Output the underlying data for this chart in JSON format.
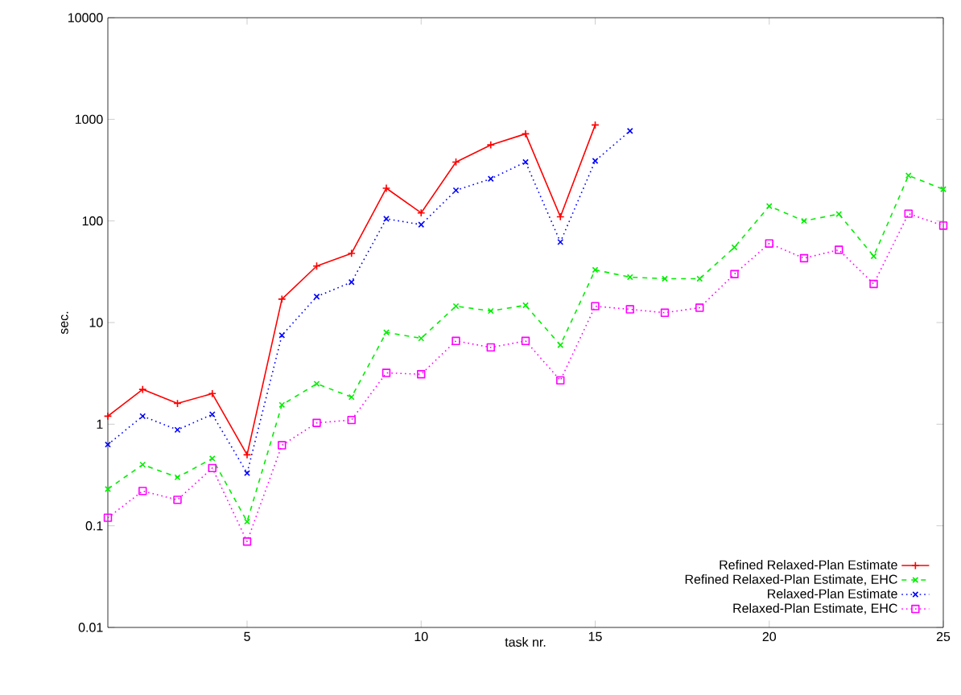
{
  "chart_data": {
    "type": "line",
    "xlabel": "task nr.",
    "ylabel": "sec.",
    "log": "y",
    "xlim": [
      1,
      25
    ],
    "ylim": [
      0.01,
      10000
    ],
    "xticks": [
      5,
      10,
      15,
      20,
      25
    ],
    "yticks": [
      0.01,
      0.1,
      1,
      10,
      100,
      1000,
      10000
    ],
    "legend": "bottom right",
    "grid": false,
    "series": [
      {
        "name": "Refined Relaxed-Plan Estimate",
        "color": "#ff0000",
        "marker": "plus",
        "line_style": "solid",
        "x": [
          1,
          2,
          3,
          4,
          5,
          6,
          7,
          8,
          9,
          10,
          11,
          12,
          13,
          14,
          15
        ],
        "values": [
          1.2,
          2.2,
          1.6,
          2.0,
          0.5,
          17,
          36,
          48,
          210,
          120,
          380,
          560,
          720,
          110,
          880
        ]
      },
      {
        "name": "Refined Relaxed-Plan Estimate, EHC",
        "color": "#00ee00",
        "marker": "cross",
        "line_style": "dashed",
        "x": [
          1,
          2,
          3,
          4,
          5,
          6,
          7,
          8,
          9,
          10,
          11,
          12,
          13,
          14,
          15,
          16,
          17,
          18,
          19,
          20,
          21,
          22,
          23,
          24,
          25
        ],
        "values": [
          0.23,
          0.4,
          0.3,
          0.46,
          0.11,
          1.55,
          2.5,
          1.85,
          8,
          7,
          14.5,
          13,
          14.8,
          6,
          33,
          28,
          27,
          27,
          55,
          140,
          100,
          117,
          45,
          280,
          205
        ]
      },
      {
        "name": "Relaxed-Plan Estimate",
        "color": "#0000ff",
        "marker": "cross",
        "line_style": "dotted",
        "x": [
          1,
          2,
          3,
          4,
          5,
          6,
          7,
          8,
          9,
          10,
          11,
          12,
          13,
          14,
          15,
          16
        ],
        "values": [
          0.63,
          1.2,
          0.88,
          1.25,
          0.33,
          7.5,
          18,
          25,
          105,
          92,
          200,
          260,
          380,
          62,
          390,
          770
        ]
      },
      {
        "name": "Relaxed-Plan Estimate, EHC",
        "color": "#ff00ff",
        "marker": "square",
        "line_style": "dotted",
        "x": [
          1,
          2,
          3,
          4,
          5,
          6,
          7,
          8,
          9,
          10,
          11,
          12,
          13,
          14,
          15,
          16,
          17,
          18,
          19,
          20,
          21,
          22,
          23,
          24,
          25
        ],
        "values": [
          0.12,
          0.22,
          0.18,
          0.37,
          0.07,
          0.62,
          1.03,
          1.1,
          3.2,
          3.1,
          6.6,
          5.7,
          6.6,
          2.7,
          14.5,
          13.5,
          12.5,
          14,
          30,
          60,
          43,
          52,
          24,
          118,
          90
        ]
      }
    ]
  }
}
